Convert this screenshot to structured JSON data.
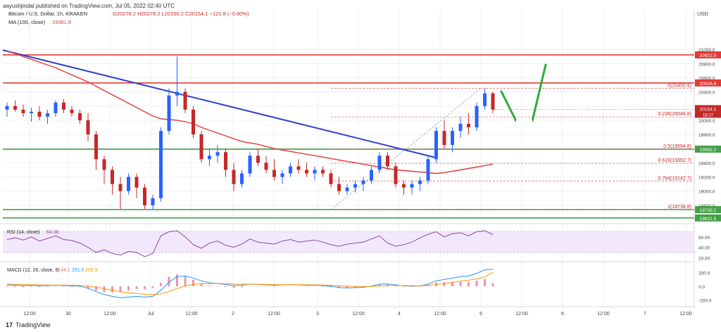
{
  "header": {
    "publisher": "aayushjindal published on TradingView.com, Jul 05, 2022 02:40 UTC",
    "symbol": "Bitcoin / U.S. Dollar, 1h, KRAKEN",
    "ohlc": "O20278.2  H20278.2  L20150.2  C20154.1  −121.8 (−0.60%)",
    "ma": "MA (100, close)",
    "ma_value": "19381.8",
    "currency": "USD"
  },
  "footer": {
    "brand": "TradingView"
  },
  "colors": {
    "up": "#2962ff",
    "down": "#c62828",
    "ma": "#e53935",
    "trend": "#2f3fd0",
    "resistance": "#e53935",
    "support": "#43a047",
    "arrow": "#2eaa3c",
    "rsi": "#8e44ad",
    "macd": "#2196f3",
    "signal": "#ff9800",
    "hist": "#f48fb1"
  },
  "chart_data": [
    {
      "type": "candlestick",
      "name": "price",
      "yticks": [
        21000,
        20800,
        20600,
        20400,
        20200,
        20000,
        19800,
        19600,
        19400,
        19200,
        19000,
        18800
      ],
      "ylim": [
        18600,
        21300
      ],
      "xticks": [
        "12:00",
        "30",
        "12:00",
        "Jul",
        "12:00",
        "2",
        "12:00",
        "3",
        "12:00",
        "4",
        "12:00",
        "5",
        "12:00",
        "6",
        "12:00",
        "7",
        "12:00"
      ],
      "ohlc": [
        [
          20150,
          20250,
          20050,
          20200
        ],
        [
          20200,
          20280,
          20120,
          20150
        ],
        [
          20150,
          20220,
          20050,
          20100
        ],
        [
          20100,
          20180,
          19980,
          20120
        ],
        [
          20120,
          20200,
          20000,
          20050
        ],
        [
          20050,
          20150,
          19950,
          20100
        ],
        [
          20100,
          20280,
          20050,
          20250
        ],
        [
          20250,
          20300,
          20100,
          20150
        ],
        [
          20150,
          20200,
          20050,
          20100
        ],
        [
          20100,
          20150,
          19950,
          20000
        ],
        [
          20000,
          20100,
          19700,
          19800
        ],
        [
          19800,
          19850,
          19300,
          19450
        ],
        [
          19450,
          19500,
          19100,
          19300
        ],
        [
          19300,
          19350,
          18950,
          19100
        ],
        [
          19100,
          19200,
          18750,
          19000
        ],
        [
          19000,
          19250,
          18950,
          19200
        ],
        [
          19200,
          19250,
          18900,
          19050
        ],
        [
          19050,
          19100,
          18750,
          18800
        ],
        [
          18800,
          18950,
          18740,
          18900
        ],
        [
          18900,
          19900,
          18850,
          19850
        ],
        [
          19850,
          20450,
          19800,
          20350
        ],
        [
          20350,
          20900,
          20200,
          20400
        ],
        [
          20400,
          20450,
          20100,
          20150
        ],
        [
          20150,
          20200,
          19750,
          19800
        ],
        [
          19800,
          19850,
          19400,
          19450
        ],
        [
          19450,
          19600,
          19350,
          19500
        ],
        [
          19500,
          19650,
          19400,
          19550
        ],
        [
          19550,
          19600,
          19200,
          19300
        ],
        [
          19300,
          19400,
          19000,
          19100
        ],
        [
          19100,
          19300,
          19050,
          19250
        ],
        [
          19250,
          19550,
          19200,
          19500
        ],
        [
          19500,
          19600,
          19350,
          19400
        ],
        [
          19400,
          19500,
          19250,
          19300
        ],
        [
          19300,
          19450,
          19150,
          19200
        ],
        [
          19200,
          19300,
          19100,
          19250
        ],
        [
          19250,
          19400,
          19200,
          19350
        ],
        [
          19350,
          19450,
          19250,
          19300
        ],
        [
          19300,
          19400,
          19200,
          19250
        ],
        [
          19250,
          19350,
          19150,
          19300
        ],
        [
          19300,
          19350,
          19200,
          19250
        ],
        [
          19250,
          19300,
          19050,
          19100
        ],
        [
          19100,
          19200,
          18950,
          19000
        ],
        [
          19000,
          19100,
          18950,
          19050
        ],
        [
          19050,
          19150,
          18980,
          19100
        ],
        [
          19100,
          19200,
          19000,
          19150
        ],
        [
          19150,
          19350,
          19100,
          19300
        ],
        [
          19300,
          19550,
          19250,
          19500
        ],
        [
          19500,
          19550,
          19300,
          19350
        ],
        [
          19350,
          19400,
          19050,
          19100
        ],
        [
          19100,
          19150,
          18950,
          19050
        ],
        [
          19050,
          19150,
          18950,
          19100
        ],
        [
          19100,
          19200,
          19000,
          19150
        ],
        [
          19150,
          19500,
          19100,
          19450
        ],
        [
          19450,
          19900,
          19400,
          19850
        ],
        [
          19850,
          20000,
          19600,
          19650
        ],
        [
          19650,
          19900,
          19550,
          19850
        ],
        [
          19850,
          20050,
          19750,
          19950
        ],
        [
          19950,
          20100,
          19800,
          19900
        ],
        [
          19900,
          20250,
          19850,
          20200
        ],
        [
          20200,
          20450,
          20150,
          20380
        ],
        [
          20380,
          20400,
          20100,
          20150
        ]
      ],
      "ma_series": [
        20980,
        20940,
        20900,
        20860,
        20820,
        20780,
        20740,
        20690,
        20640,
        20590,
        20540,
        20480,
        20420,
        20360,
        20300,
        20240,
        20180,
        20120,
        20060,
        20020,
        20010,
        20000,
        19980,
        19950,
        19900,
        19860,
        19820,
        19780,
        19740,
        19700,
        19680,
        19660,
        19630,
        19600,
        19580,
        19560,
        19540,
        19520,
        19500,
        19480,
        19460,
        19440,
        19420,
        19400,
        19380,
        19360,
        19340,
        19320,
        19300,
        19290,
        19280,
        19270,
        19260,
        19250,
        19260,
        19280,
        19300,
        19320,
        19340,
        19360,
        19382
      ],
      "levels": [
        {
          "label": "20922.5",
          "value": 20922.5,
          "kind": "resistance"
        },
        {
          "label": "20526.8",
          "value": 20526.8,
          "kind": "resistance"
        },
        {
          "label": "19592.2",
          "value": 19592.2,
          "kind": "support"
        },
        {
          "label": "18739.2",
          "value": 18739.2,
          "kind": "support"
        },
        {
          "label": "18621.5",
          "value": 18621.5,
          "kind": "support"
        }
      ],
      "current_price_label": "20154.1",
      "countdown_label": "18:17",
      "fibonacci": [
        {
          "label": "0(20450.9)",
          "value": 20450.9
        },
        {
          "label": "0.236(20046.8)",
          "value": 20046.8
        },
        {
          "label": "0.5(19594.8)",
          "value": 19594.8
        },
        {
          "label": "0.618(19392.7)",
          "value": 19392.7
        },
        {
          "label": "0.764(19142.7)",
          "value": 19142.7
        },
        {
          "label": "1(18738.8)",
          "value": 18738.8
        }
      ]
    },
    {
      "type": "line",
      "name": "RSI (14, close)",
      "label": "RSI (14, close)",
      "value_label": "64.38",
      "yticks": [
        60.0,
        40.0,
        20.0
      ],
      "ylim": [
        15,
        80
      ],
      "band": [
        30,
        70
      ],
      "values": [
        55,
        58,
        54,
        60,
        52,
        57,
        62,
        55,
        53,
        48,
        40,
        30,
        35,
        28,
        25,
        32,
        30,
        22,
        28,
        62,
        70,
        72,
        60,
        45,
        38,
        48,
        52,
        44,
        40,
        46,
        56,
        50,
        48,
        46,
        52,
        55,
        50,
        52,
        54,
        50,
        45,
        42,
        46,
        48,
        50,
        56,
        62,
        48,
        42,
        45,
        50,
        58,
        65,
        70,
        60,
        66,
        68,
        62,
        70,
        72,
        64.38
      ]
    },
    {
      "type": "line",
      "name": "MACD (12, 26, close, 9)",
      "label": "MACD (12, 26, close, 9)",
      "values_label": [
        "44.1",
        "251.0",
        "206.9"
      ],
      "yticks": [
        200.0,
        0.0,
        -200.0
      ],
      "ylim": [
        -280,
        320
      ],
      "macd": [
        20,
        15,
        10,
        12,
        8,
        10,
        15,
        10,
        5,
        0,
        -30,
        -80,
        -120,
        -150,
        -170,
        -160,
        -150,
        -160,
        -150,
        -60,
        60,
        140,
        150,
        120,
        80,
        50,
        40,
        25,
        10,
        15,
        30,
        25,
        20,
        15,
        20,
        25,
        20,
        15,
        15,
        10,
        0,
        -20,
        -25,
        -20,
        -15,
        0,
        30,
        35,
        20,
        5,
        0,
        5,
        30,
        80,
        100,
        120,
        140,
        150,
        190,
        240,
        251
      ],
      "signal": [
        30,
        28,
        25,
        22,
        20,
        18,
        18,
        16,
        14,
        11,
        3,
        -14,
        -36,
        -59,
        -81,
        -97,
        -108,
        -119,
        -125,
        -112,
        -78,
        -34,
        3,
        26,
        37,
        40,
        40,
        37,
        32,
        29,
        29,
        28,
        26,
        24,
        23,
        23,
        22,
        21,
        20,
        18,
        14,
        7,
        1,
        -3,
        -5,
        -4,
        3,
        9,
        11,
        10,
        8,
        7,
        12,
        26,
        41,
        57,
        74,
        89,
        109,
        135,
        206.9
      ]
    }
  ]
}
